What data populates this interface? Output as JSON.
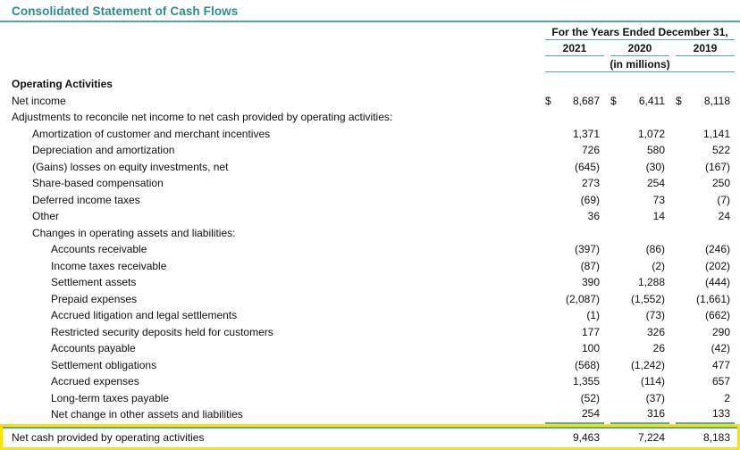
{
  "title": "Consolidated Statement of Cash Flows",
  "colors": {
    "heading_teal": "#2e8c8e",
    "rule_teal": "#5aa8a5",
    "highlight_yellow": "#f7e400"
  },
  "table": {
    "period_header": "For the Years Ended December 31,",
    "years": [
      "2021",
      "2020",
      "2019"
    ],
    "units_label": "(in millions)",
    "currency_symbol": "$",
    "rows": [
      {
        "label": "Operating Activities",
        "indent": 0,
        "bold": true,
        "values": [
          "",
          "",
          ""
        ]
      },
      {
        "label": "Net income",
        "indent": 0,
        "dollar": true,
        "values": [
          "8,687",
          "6,411",
          "8,118"
        ]
      },
      {
        "label": "Adjustments to reconcile net income to net cash provided by operating activities:",
        "indent": 0,
        "values": [
          "",
          "",
          ""
        ]
      },
      {
        "label": "Amortization of customer and merchant incentives",
        "indent": 1,
        "values": [
          "1,371",
          "1,072",
          "1,141"
        ]
      },
      {
        "label": "Depreciation and amortization",
        "indent": 1,
        "values": [
          "726",
          "580",
          "522"
        ]
      },
      {
        "label": "(Gains) losses on equity investments, net",
        "indent": 1,
        "values": [
          "(645)",
          "(30)",
          "(167)"
        ]
      },
      {
        "label": "Share-based compensation",
        "indent": 1,
        "values": [
          "273",
          "254",
          "250"
        ]
      },
      {
        "label": "Deferred income taxes",
        "indent": 1,
        "values": [
          "(69)",
          "73",
          "(7)"
        ]
      },
      {
        "label": "Other",
        "indent": 1,
        "values": [
          "36",
          "14",
          "24"
        ]
      },
      {
        "label": "Changes in operating assets and liabilities:",
        "indent": 1,
        "values": [
          "",
          "",
          ""
        ]
      },
      {
        "label": "Accounts receivable",
        "indent": 2,
        "values": [
          "(397)",
          "(86)",
          "(246)"
        ]
      },
      {
        "label": "Income taxes receivable",
        "indent": 2,
        "values": [
          "(87)",
          "(2)",
          "(202)"
        ]
      },
      {
        "label": "Settlement assets",
        "indent": 2,
        "values": [
          "390",
          "1,288",
          "(444)"
        ]
      },
      {
        "label": "Prepaid expenses",
        "indent": 2,
        "values": [
          "(2,087)",
          "(1,552)",
          "(1,661)"
        ]
      },
      {
        "label": "Accrued litigation and legal settlements",
        "indent": 2,
        "values": [
          "(1)",
          "(73)",
          "(662)"
        ]
      },
      {
        "label": "Restricted security deposits held for customers",
        "indent": 2,
        "values": [
          "177",
          "326",
          "290"
        ]
      },
      {
        "label": "Accounts payable",
        "indent": 2,
        "values": [
          "100",
          "26",
          "(42)"
        ]
      },
      {
        "label": "Settlement obligations",
        "indent": 2,
        "values": [
          "(568)",
          "(1,242)",
          "477"
        ]
      },
      {
        "label": "Accrued expenses",
        "indent": 2,
        "values": [
          "1,355",
          "(114)",
          "657"
        ]
      },
      {
        "label": "Long-term taxes payable",
        "indent": 2,
        "values": [
          "(52)",
          "(37)",
          "2"
        ]
      },
      {
        "label": "Net change in other assets and liabilities",
        "indent": 2,
        "values": [
          "254",
          "316",
          "133"
        ],
        "underline_values": true
      },
      {
        "label": "Net cash provided by operating activities",
        "indent": 0,
        "values": [
          "9,463",
          "7,224",
          "8,183"
        ],
        "highlight": true,
        "top_border": true
      }
    ]
  }
}
